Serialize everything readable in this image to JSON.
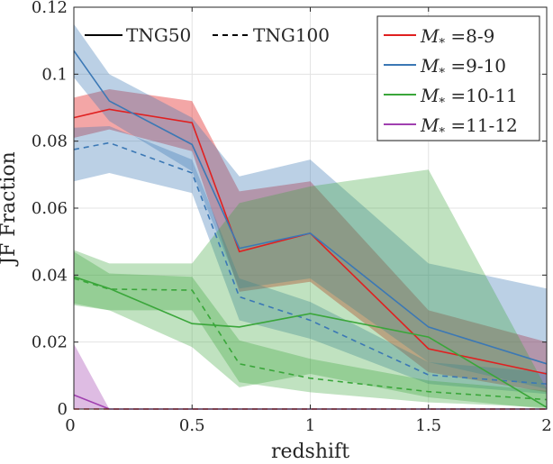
{
  "chart_data": {
    "type": "line",
    "xlabel": "redshift",
    "ylabel": "JF Fraction",
    "xlim": [
      0,
      2
    ],
    "ylim": [
      0,
      0.12
    ],
    "xticks": [
      0,
      0.5,
      1,
      1.5,
      2
    ],
    "xtick_labels": [
      "0",
      "0.5",
      "1",
      "1.5",
      "2"
    ],
    "yticks": [
      0,
      0.02,
      0.04,
      0.06,
      0.08,
      0.1,
      0.12
    ],
    "ytick_labels": [
      "0",
      "0.02",
      "0.04",
      "0.06",
      "0.08",
      "0.1",
      "0.12"
    ],
    "grid": true,
    "style_legend": {
      "location": "top-left",
      "solid_label": "TNG50",
      "dashed_label": "TNG100"
    },
    "mass_legend": {
      "location": "top-right",
      "prefix": "M",
      "subscript": "*",
      "eq": " =",
      "entries": [
        {
          "range": "8-9",
          "color": "#e02020"
        },
        {
          "range": "9-10",
          "color": "#3b78b5"
        },
        {
          "range": "10-11",
          "color": "#3aa63a"
        },
        {
          "range": "11-12",
          "color": "#a040b0"
        }
      ]
    },
    "series": [
      {
        "name": "M*=8-9 TNG50",
        "color": "#e02020",
        "dash": false,
        "band_opacity": 0.4,
        "x": [
          0,
          0.15,
          0.5,
          0.7,
          1,
          1.5,
          2
        ],
        "values": [
          0.087,
          0.0895,
          0.0855,
          0.047,
          0.0525,
          0.018,
          0.0105
        ],
        "upper": [
          0.093,
          0.0955,
          0.092,
          0.065,
          0.068,
          0.0295,
          0.02
        ],
        "lower": [
          0.081,
          0.0835,
          0.077,
          0.035,
          0.038,
          0.011,
          0.005
        ]
      },
      {
        "name": "M*=9-10 TNG50",
        "color": "#3b78b5",
        "dash": false,
        "band_opacity": 0.35,
        "x": [
          0,
          0.15,
          0.5,
          0.7,
          1,
          1.5,
          2
        ],
        "values": [
          0.107,
          0.092,
          0.079,
          0.048,
          0.0525,
          0.0245,
          0.0135
        ],
        "upper": [
          0.115,
          0.1,
          0.087,
          0.0695,
          0.0745,
          0.0435,
          0.036
        ],
        "lower": [
          0.099,
          0.086,
          0.071,
          0.036,
          0.039,
          0.014,
          0.006
        ]
      },
      {
        "name": "M*=9-10 TNG100",
        "color": "#3b78b5",
        "dash": true,
        "band_opacity": 0.35,
        "x": [
          0,
          0.15,
          0.5,
          0.7,
          1,
          1.5,
          2
        ],
        "values": [
          0.0775,
          0.0795,
          0.0705,
          0.0335,
          0.0265,
          0.0102,
          0.0075
        ],
        "upper": [
          0.084,
          0.0845,
          0.0745,
          0.039,
          0.032,
          0.014,
          0.011
        ],
        "lower": [
          0.068,
          0.0705,
          0.0645,
          0.0265,
          0.021,
          0.0075,
          0.0045
        ]
      },
      {
        "name": "M*=10-11 TNG50",
        "color": "#3aa63a",
        "dash": false,
        "band_opacity": 0.32,
        "x": [
          0,
          0.15,
          0.5,
          0.7,
          1,
          1.5,
          2
        ],
        "values": [
          0.0395,
          0.036,
          0.0255,
          0.0245,
          0.0285,
          0.0215,
          0.0005
        ],
        "upper": [
          0.0475,
          0.0435,
          0.0435,
          0.0615,
          0.0665,
          0.0715,
          0.006
        ],
        "lower": [
          0.0315,
          0.0295,
          0.0185,
          0.0065,
          0.0105,
          0.0035,
          0.0
        ]
      },
      {
        "name": "M*=10-11 TNG100",
        "color": "#3aa63a",
        "dash": true,
        "band_opacity": 0.32,
        "x": [
          0,
          0.15,
          0.5,
          0.7,
          1,
          1.5,
          2
        ],
        "values": [
          0.039,
          0.0358,
          0.0355,
          0.0135,
          0.0092,
          0.0052,
          0.0028
        ],
        "upper": [
          0.047,
          0.0405,
          0.0395,
          0.0205,
          0.015,
          0.0085,
          0.0055
        ],
        "lower": [
          0.031,
          0.0295,
          0.0295,
          0.008,
          0.005,
          0.002,
          0.0005
        ]
      },
      {
        "name": "M*=11-12 TNG50",
        "color": "#a040b0",
        "dash": false,
        "band_opacity": 0.35,
        "x": [
          0,
          0.15,
          0.5,
          0.7,
          1,
          1.5,
          2
        ],
        "values": [
          0.0042,
          0.0,
          0.0,
          0.0,
          0.0,
          0.0,
          0.0
        ],
        "upper": [
          0.0195,
          0.0,
          0.0,
          0.0,
          0.0,
          0.0,
          0.0
        ],
        "lower": [
          0.0,
          0.0,
          0.0,
          0.0,
          0.0,
          0.0,
          0.0
        ]
      },
      {
        "name": "M*=8-9 TNG100 (zero)",
        "color": "#e02020",
        "dash": true,
        "band_opacity": 0.0,
        "x": [
          0,
          2
        ],
        "values": [
          0.0,
          0.0
        ],
        "upper": [
          0.0,
          0.0
        ],
        "lower": [
          0.0,
          0.0
        ]
      }
    ]
  }
}
